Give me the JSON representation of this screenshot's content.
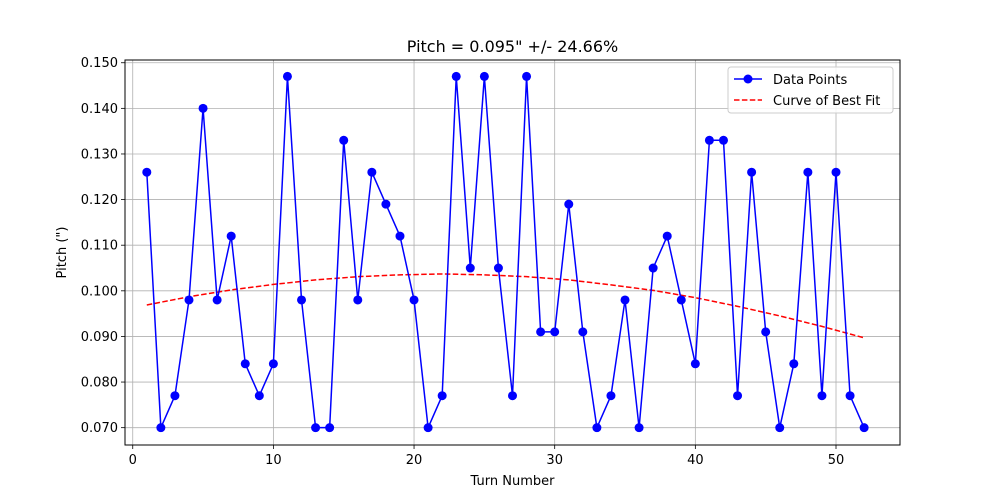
{
  "chart_data": {
    "type": "line",
    "title": "Pitch = 0.095\" +/- 24.66%",
    "xlabel": "Turn Number",
    "ylabel": "Pitch (\")",
    "xlim": [
      -0.55,
      54.55
    ],
    "ylim": [
      0.0662,
      0.1506
    ],
    "xticks": [
      0,
      10,
      20,
      30,
      40,
      50
    ],
    "yticks": [
      0.07,
      0.08,
      0.09,
      0.1,
      0.11,
      0.12,
      0.13,
      0.14,
      0.15
    ],
    "ytick_labels": [
      "0.070",
      "0.080",
      "0.090",
      "0.100",
      "0.110",
      "0.120",
      "0.130",
      "0.140",
      "0.150"
    ],
    "grid": true,
    "legend_position": "top-right",
    "colors": {
      "data": "#0000ff",
      "fit": "#ff0000"
    },
    "series": [
      {
        "name": "Data Points",
        "style": "solid-line-with-circle-markers",
        "x": [
          1,
          2,
          3,
          4,
          5,
          6,
          7,
          8,
          9,
          10,
          11,
          12,
          13,
          14,
          15,
          16,
          17,
          18,
          19,
          20,
          21,
          22,
          23,
          24,
          25,
          26,
          27,
          28,
          29,
          30,
          31,
          32,
          33,
          34,
          35,
          36,
          37,
          38,
          39,
          40,
          41,
          42,
          43,
          44,
          45,
          46,
          47,
          48,
          49,
          50,
          51,
          52
        ],
        "y": [
          0.126,
          0.07,
          0.077,
          0.098,
          0.14,
          0.098,
          0.112,
          0.084,
          0.077,
          0.084,
          0.147,
          0.098,
          0.07,
          0.07,
          0.133,
          0.098,
          0.126,
          0.119,
          0.112,
          0.098,
          0.07,
          0.077,
          0.147,
          0.105,
          0.147,
          0.105,
          0.077,
          0.147,
          0.091,
          0.091,
          0.119,
          0.091,
          0.07,
          0.077,
          0.098,
          0.07,
          0.105,
          0.112,
          0.098,
          0.084,
          0.133,
          0.133,
          0.077,
          0.126,
          0.091,
          0.07,
          0.084,
          0.126,
          0.077,
          0.126,
          0.077,
          0.07
        ]
      },
      {
        "name": "Curve of Best Fit",
        "style": "dashed-line",
        "x": [
          1,
          4,
          7,
          10,
          13,
          16,
          19,
          22,
          25,
          28,
          31,
          34,
          37,
          40,
          43,
          46,
          49,
          52
        ],
        "y": [
          0.0969,
          0.0987,
          0.1002,
          0.1014,
          0.1024,
          0.1031,
          0.1035,
          0.1037,
          0.1035,
          0.1031,
          0.1024,
          0.1013,
          0.1001,
          0.0985,
          0.0966,
          0.0945,
          0.0922,
          0.0897
        ]
      }
    ]
  }
}
